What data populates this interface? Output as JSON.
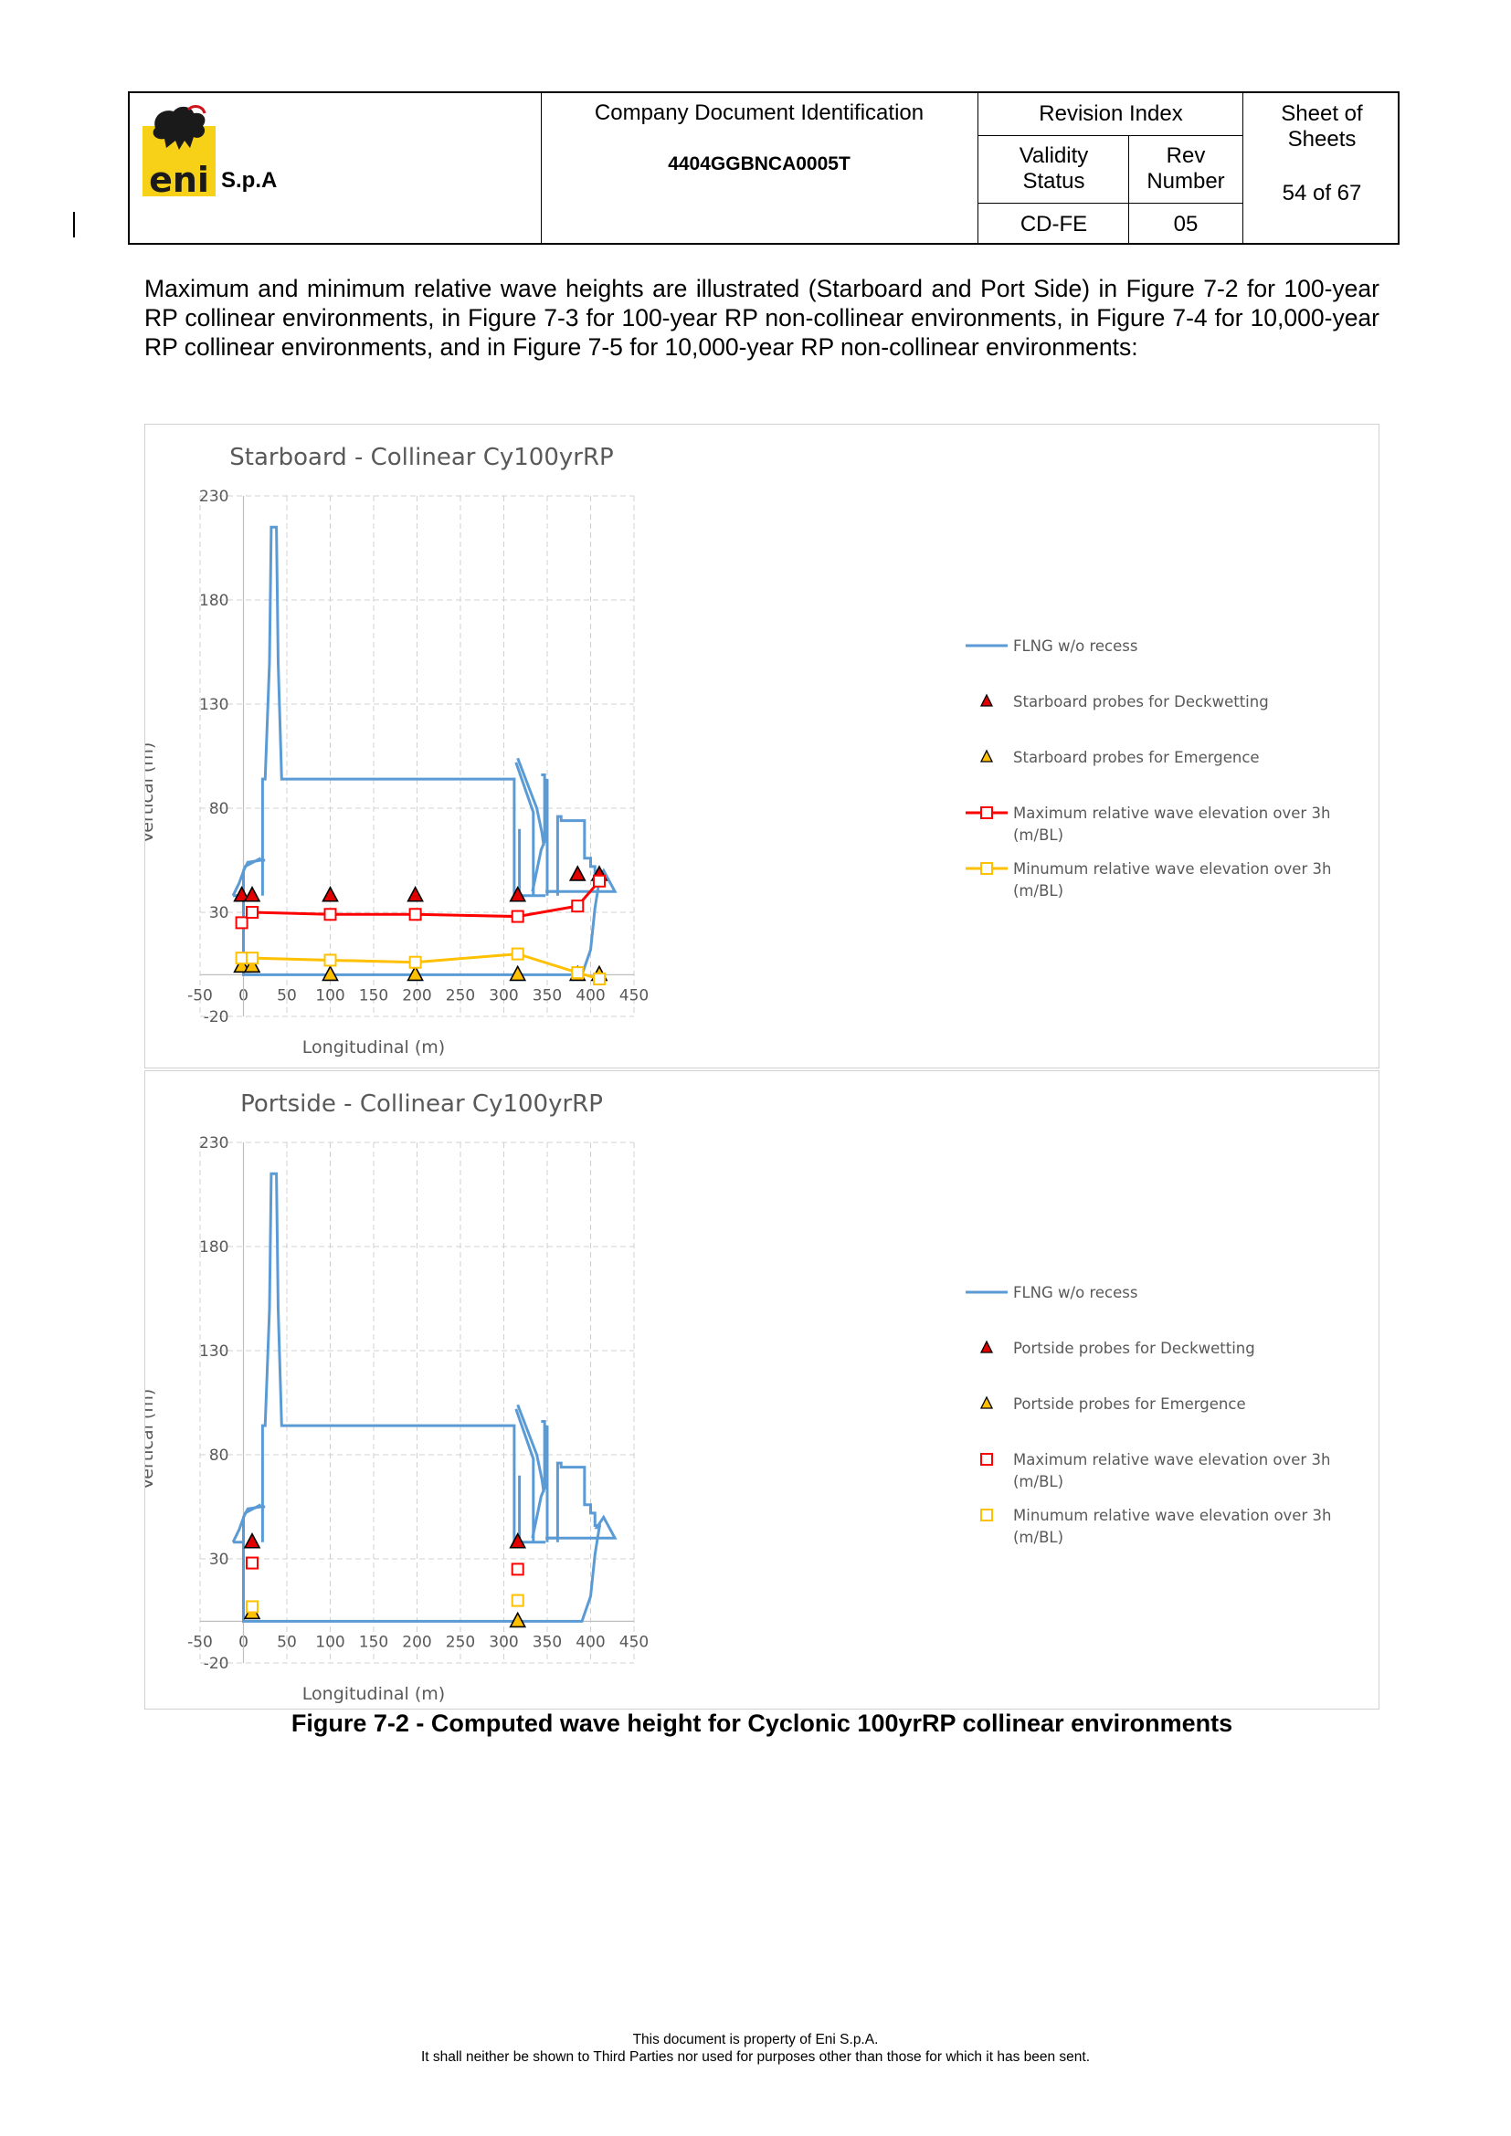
{
  "header": {
    "company_suffix": "S.p.A",
    "logo_text": "eni",
    "doc_id_label": "Company Document Identification",
    "doc_id": "4404GGBNCA0005T",
    "revision_index_label": "Revision Index",
    "validity_status_label": "Validity\nStatus",
    "rev_number_label": "Rev\nNumber",
    "validity_status": "CD-FE",
    "rev_number": "05",
    "sheet_label": "Sheet  of\nSheets",
    "sheet_value": "54 of 67"
  },
  "body": {
    "paragraph": "Maximum and minimum relative wave heights are illustrated (Starboard and Port Side) in Figure 7-2 for 100-year RP collinear environments, in Figure 7-3 for 100-year RP non-collinear environments, in Figure 7-4 for 10,000-year RP collinear environments, and in Figure 7-5 for 10,000-year RP non-collinear environments:",
    "caption": "Figure 7-2 - Computed wave height for Cyclonic 100yrRP collinear environments"
  },
  "footer": {
    "line1": "This document is property of Eni S.p.A.",
    "line2": "It shall neither be shown to Third Parties nor used for purposes other than those for which it has been sent."
  },
  "colors": {
    "hull": "#5b9bd5",
    "max_line": "#ff0000",
    "min_line": "#ffc000",
    "grid": "#d0d0d0"
  },
  "chart_data": [
    {
      "type": "line",
      "title": "Starboard - Collinear Cy100yrRP",
      "xlabel": "Longitudinal (m)",
      "ylabel": "Vertical (m)",
      "xlim": [
        -50,
        450
      ],
      "ylim": [
        -20,
        230
      ],
      "xticks": [
        -50,
        0,
        50,
        100,
        150,
        200,
        250,
        300,
        350,
        400,
        450
      ],
      "yticks": [
        -20,
        30,
        80,
        130,
        180,
        230
      ],
      "grid": true,
      "legend_position": "right",
      "series": [
        {
          "name": "FLNG w/o recess",
          "kind": "outline",
          "color": "#5b9bd5",
          "x": [
            0,
            390,
            400,
            405,
            410,
            407,
            415,
            428,
            420,
            415,
            410,
            395,
            385,
            348,
            348
          ],
          "y": [
            0,
            0,
            10,
            30,
            45,
            45,
            50,
            40,
            40,
            40,
            40,
            40,
            40,
            40,
            0
          ]
        },
        {
          "name": "Starboard probes for Deckwetting",
          "kind": "marker",
          "marker": "triangle",
          "color": "#c00000",
          "x": [
            -2,
            10,
            100,
            198,
            316,
            385,
            410
          ],
          "y": [
            38,
            38,
            38,
            38,
            38,
            48,
            48
          ]
        },
        {
          "name": "Starboard probes for Emergence",
          "kind": "marker",
          "marker": "triangle",
          "color": "#ffc000",
          "x": [
            -2,
            10,
            100,
            198,
            316,
            385,
            410
          ],
          "y": [
            4,
            4,
            0,
            0,
            0,
            0,
            0
          ]
        },
        {
          "name": "Maximum relative wave elevation over 3h (m/BL)",
          "kind": "line-marker",
          "marker": "square",
          "color": "#ff0000",
          "x": [
            -2,
            10,
            100,
            198,
            316,
            385,
            410
          ],
          "y": [
            25,
            30,
            29,
            29,
            28,
            33,
            45
          ]
        },
        {
          "name": "Minumum relative wave elevation over 3h (m/BL)",
          "kind": "line-marker",
          "marker": "square",
          "color": "#ffc000",
          "x": [
            -2,
            10,
            100,
            198,
            316,
            385,
            410
          ],
          "y": [
            8,
            8,
            7,
            6,
            10,
            1,
            -2
          ]
        }
      ]
    },
    {
      "type": "scatter",
      "title": "Portside - Collinear Cy100yrRP",
      "xlabel": "Longitudinal  (m)",
      "ylabel": "Vertical (m)",
      "xlim": [
        -50,
        450
      ],
      "ylim": [
        -20,
        230
      ],
      "xticks": [
        -50,
        0,
        50,
        100,
        150,
        200,
        250,
        300,
        350,
        400,
        450
      ],
      "yticks": [
        -20,
        30,
        80,
        130,
        180,
        230
      ],
      "grid": true,
      "legend_position": "right",
      "series": [
        {
          "name": "FLNG w/o recess",
          "kind": "outline",
          "color": "#5b9bd5"
        },
        {
          "name": "Portside probes for Deckwetting",
          "kind": "marker",
          "marker": "triangle",
          "color": "#c00000",
          "x": [
            10,
            316
          ],
          "y": [
            38,
            38
          ]
        },
        {
          "name": "Portside probes for Emergence",
          "kind": "marker",
          "marker": "triangle",
          "color": "#ffc000",
          "x": [
            10,
            316
          ],
          "y": [
            4,
            0
          ]
        },
        {
          "name": "Maximum relative wave elevation over 3h (m/BL)",
          "kind": "marker",
          "marker": "square",
          "color": "#ff0000",
          "x": [
            10,
            316
          ],
          "y": [
            28,
            25
          ]
        },
        {
          "name": "Minumum relative wave elevation over 3h (m/BL)",
          "kind": "marker",
          "marker": "square",
          "color": "#ffc000",
          "x": [
            10,
            316
          ],
          "y": [
            7,
            10
          ]
        }
      ]
    }
  ]
}
